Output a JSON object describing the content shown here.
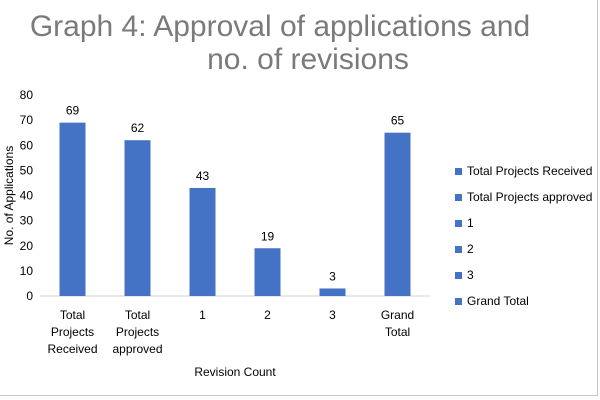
{
  "chart_data": {
    "type": "bar",
    "title": "Graph 4: Approval of applications and no. of revisions",
    "title_lines": [
      "Graph 4: Approval of applications and",
      "no. of revisions"
    ],
    "xlabel": "Revision Count",
    "ylabel": "No. of Applications",
    "ylim": [
      0,
      80
    ],
    "yticks": [
      0,
      10,
      20,
      30,
      40,
      50,
      60,
      70,
      80
    ],
    "grid": false,
    "legend_position": "right",
    "categories": [
      [
        "Total",
        "Projects",
        "Received"
      ],
      [
        "Total",
        "Projects",
        "approved"
      ],
      [
        "1"
      ],
      [
        "2"
      ],
      [
        "3"
      ],
      [
        "Grand",
        "Total"
      ]
    ],
    "values": [
      69,
      62,
      43,
      19,
      3,
      65
    ],
    "data_labels": [
      "69",
      "62",
      "43",
      "19",
      "3",
      "65"
    ],
    "legend": [
      "Total Projects Received",
      "Total Projects approved",
      "1",
      "2",
      "3",
      "Grand Total"
    ],
    "bar_color": "#4472c4"
  }
}
